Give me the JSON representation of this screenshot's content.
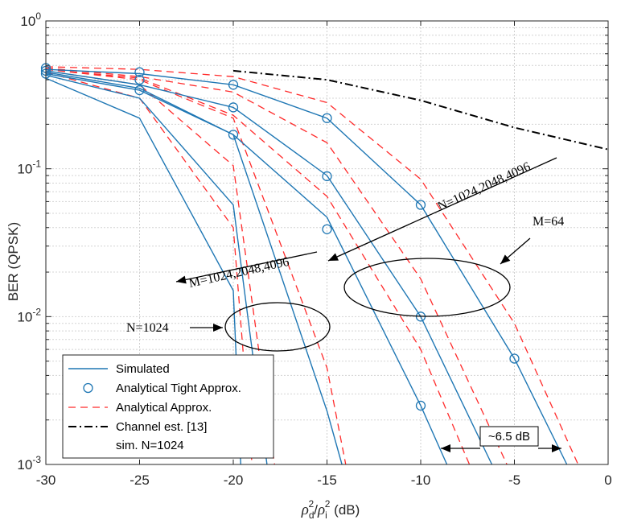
{
  "chart_data": {
    "type": "line",
    "xlabel": "ρ_d²/ρ_i² (dB)",
    "ylabel": "BER (QPSK)",
    "xlim": [
      -30,
      0
    ],
    "ylim": [
      0.001,
      1
    ],
    "yscale": "log",
    "grid": true,
    "legend_position": "bottom-left",
    "x_ticks": [
      -30,
      -25,
      -20,
      -15,
      -10,
      -5,
      0
    ],
    "x_tick_labels": [
      "-30",
      "-25",
      "-20",
      "-15",
      "-10",
      "-5",
      "0"
    ],
    "colors": {
      "simulated": "#1f77b4",
      "tight": "#1f77b4",
      "approx": "#ff2a2a",
      "channel": "#000000"
    },
    "legend": [
      {
        "key": "simulated",
        "label": "Simulated"
      },
      {
        "key": "tight",
        "label": "Analytical Tight Approx."
      },
      {
        "key": "approx",
        "label": "Analytical Approx."
      },
      {
        "key": "channel",
        "label": "Channel est. [13]",
        "label2": "sim. N=1024"
      }
    ],
    "series": [
      {
        "group": "N=1024",
        "kind": "simulated",
        "x": [
          -30,
          -25,
          -20,
          -19.6
        ],
        "y": [
          0.41,
          0.22,
          0.015,
          0.001
        ]
      },
      {
        "group": "N=1024",
        "kind": "approx",
        "x": [
          -30,
          -25,
          -20,
          -19.0
        ],
        "y": [
          0.45,
          0.3,
          0.04,
          0.001
        ]
      },
      {
        "group": "N=1024",
        "kind": "simulated",
        "x": [
          -30,
          -25,
          -20,
          -18.2
        ],
        "y": [
          0.43,
          0.3,
          0.057,
          0.001
        ]
      },
      {
        "group": "N=1024",
        "kind": "approx",
        "x": [
          -30,
          -25,
          -20,
          -17.8
        ],
        "y": [
          0.46,
          0.37,
          0.105,
          0.001
        ]
      },
      {
        "group": "N=1024",
        "kind": "simulated",
        "x": [
          -30,
          -25,
          -20,
          -15,
          -14.2
        ],
        "y": [
          0.44,
          0.34,
          0.17,
          0.0023,
          0.001
        ]
      },
      {
        "group": "N=1024",
        "kind": "approx",
        "x": [
          -30,
          -25,
          -20,
          -15,
          -14.0
        ],
        "y": [
          0.47,
          0.4,
          0.22,
          0.0045,
          0.001
        ]
      },
      {
        "group": "M=64",
        "kind": "simulated",
        "x": [
          -30,
          -25,
          -20,
          -15,
          -10,
          -8.6
        ],
        "y": [
          0.45,
          0.35,
          0.17,
          0.047,
          0.0025,
          0.001
        ]
      },
      {
        "group": "M=64",
        "kind": "approx",
        "x": [
          -30,
          -25,
          -20,
          -15,
          -10,
          -7.4
        ],
        "y": [
          0.47,
          0.41,
          0.23,
          0.065,
          0.006,
          0.001
        ]
      },
      {
        "group": "M=64",
        "kind": "simulated",
        "x": [
          -30,
          -25,
          -20,
          -15,
          -10,
          -6.2
        ],
        "y": [
          0.46,
          0.37,
          0.26,
          0.09,
          0.01,
          0.001
        ]
      },
      {
        "group": "M=64",
        "kind": "approx",
        "x": [
          -30,
          -25,
          -20,
          -15,
          -10,
          -5.4
        ],
        "y": [
          0.48,
          0.42,
          0.33,
          0.15,
          0.018,
          0.001
        ]
      },
      {
        "group": "M=64",
        "kind": "simulated",
        "x": [
          -30,
          -25,
          -20,
          -15,
          -10,
          -5,
          -2.2
        ],
        "y": [
          0.47,
          0.44,
          0.37,
          0.22,
          0.057,
          0.0052,
          0.001
        ]
      },
      {
        "group": "M=64",
        "kind": "approx",
        "x": [
          -30,
          -25,
          -20,
          -15,
          -10,
          -5,
          -1.6
        ],
        "y": [
          0.49,
          0.47,
          0.42,
          0.28,
          0.085,
          0.009,
          0.001
        ]
      },
      {
        "group": "channel",
        "kind": "channel",
        "x": [
          -20,
          -15,
          -10,
          -5,
          0
        ],
        "y": [
          0.46,
          0.4,
          0.29,
          0.19,
          0.135
        ]
      }
    ],
    "markers": [
      {
        "x": -30,
        "y": 0.44
      },
      {
        "x": -30,
        "y": 0.46
      },
      {
        "x": -30,
        "y": 0.48
      },
      {
        "x": -25,
        "y": 0.34
      },
      {
        "x": -25,
        "y": 0.4
      },
      {
        "x": -25,
        "y": 0.45
      },
      {
        "x": -20,
        "y": 0.17
      },
      {
        "x": -20,
        "y": 0.26
      },
      {
        "x": -20,
        "y": 0.37
      },
      {
        "x": -15,
        "y": 0.039
      },
      {
        "x": -15,
        "y": 0.089
      },
      {
        "x": -15,
        "y": 0.22
      },
      {
        "x": -10,
        "y": 0.0025
      },
      {
        "x": -10,
        "y": 0.01
      },
      {
        "x": -10,
        "y": 0.057
      },
      {
        "x": -5,
        "y": 0.0052
      }
    ],
    "annotations": {
      "n1024_sweep": "N=1024,2048,4096",
      "m1024_sweep": "M=1024,2048,4096",
      "m64": "M=64",
      "n1024": "N=1024",
      "gap": "~6.5 dB"
    }
  }
}
